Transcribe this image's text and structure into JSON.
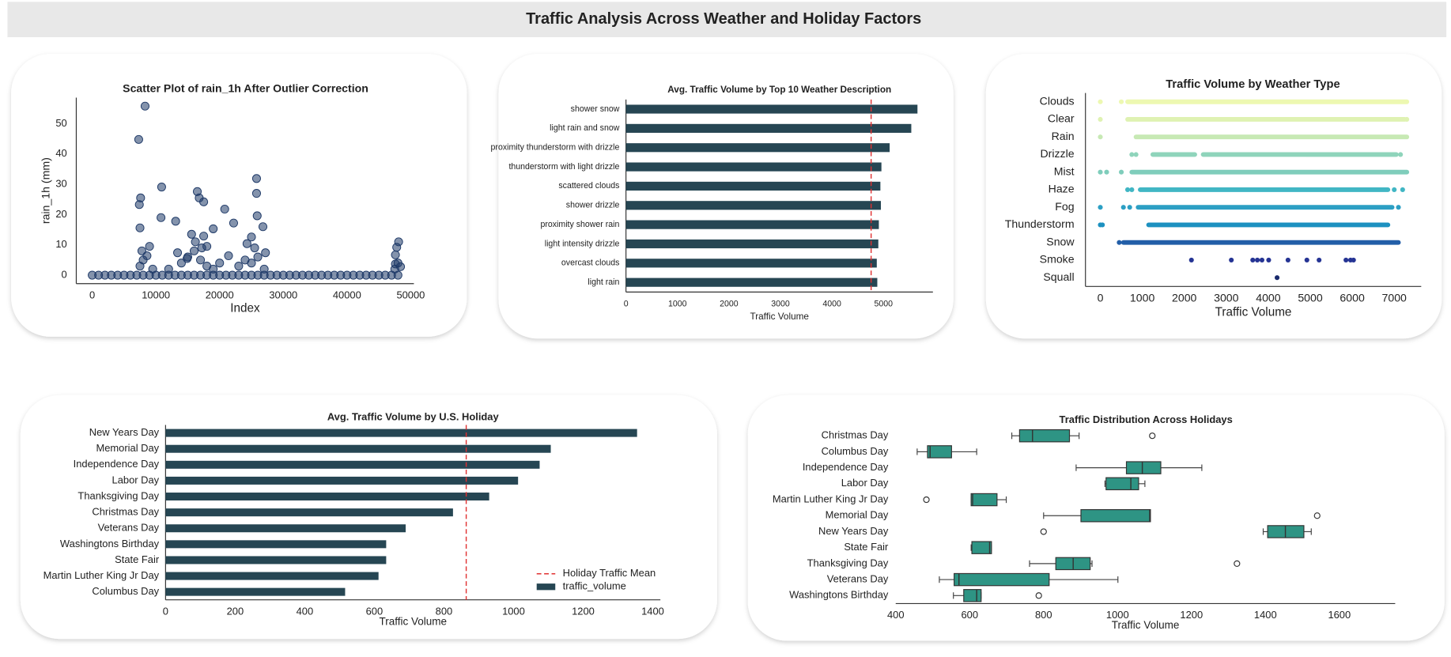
{
  "title": "Traffic Analysis Across Weather and Holiday Factors",
  "chart_data": [
    {
      "type": "scatter",
      "title": "Scatter Plot of rain_1h After Outlier Correction",
      "x_label": "Index",
      "y_label": "rain_1h (mm)",
      "color": "#1f3a68",
      "x": [
        0,
        1000,
        2000,
        3000,
        4000,
        5000,
        6000,
        7000,
        8000,
        9000,
        10000,
        11000,
        12000,
        13000,
        14000,
        15000,
        16000,
        17000,
        18000,
        19000,
        20000,
        21000,
        22000,
        23000,
        24000,
        25000,
        26000,
        27000,
        28000,
        29000,
        30000,
        31000,
        32000,
        33000,
        34000,
        35000,
        36000,
        37000,
        38000,
        39000,
        40000,
        41000,
        42000,
        43000,
        44000,
        45000,
        46000,
        47000,
        48000,
        8300,
        7300,
        7600,
        10900,
        16500,
        16800,
        17500,
        25800,
        25800,
        25900,
        7400,
        10800,
        20800,
        13100,
        7500,
        22200,
        26800,
        17500,
        15600,
        19000,
        48100,
        47800,
        9000,
        25000,
        24300,
        18000,
        13400,
        21400,
        8600,
        27200,
        14900,
        47600,
        47600,
        48400,
        7500,
        8000,
        12000,
        14000,
        15000,
        16000,
        17000,
        18000,
        19000,
        20000,
        23000,
        24000,
        25000,
        26000,
        27000,
        47500,
        48000,
        7800,
        9500,
        16200,
        17200,
        25500
      ],
      "values": [
        0,
        0,
        0,
        0,
        0,
        0,
        0,
        0,
        0,
        0,
        0,
        0,
        0,
        0,
        0,
        0,
        0,
        0,
        0,
        0,
        0,
        0,
        0,
        0,
        0,
        0,
        0,
        0,
        0,
        0,
        0,
        0,
        0,
        0,
        0,
        0,
        0,
        0,
        0,
        0,
        0,
        0,
        0,
        0,
        0,
        0,
        0,
        0,
        0,
        55.8,
        44.8,
        25.5,
        29.1,
        27.6,
        25.5,
        24.2,
        31.9,
        27,
        19.6,
        23.3,
        19,
        21.8,
        17.8,
        15.6,
        17.2,
        16,
        12.9,
        13.5,
        15.3,
        11,
        9.2,
        9.5,
        12.6,
        10.4,
        9.5,
        7.4,
        6.4,
        6.4,
        7.4,
        5.5,
        6.7,
        3.7,
        2.8,
        3,
        5,
        2,
        4,
        6,
        8,
        5,
        3,
        2,
        4,
        3,
        5,
        4,
        6,
        2,
        2,
        4,
        8,
        2,
        11,
        9,
        9
      ],
      "xlim": [
        -2500,
        50500
      ],
      "xticks": [
        0,
        10000,
        20000,
        30000,
        40000,
        50000
      ],
      "ylim": [
        -2.8,
        58.6
      ],
      "yticks": [
        0,
        10,
        20,
        30,
        40,
        50
      ]
    },
    {
      "type": "bar",
      "orientation": "horizontal",
      "title": "Avg. Traffic Volume by Top 10 Weather Description",
      "x_label": "Traffic Volume",
      "categories": [
        "shower snow",
        "light rain and snow",
        "proximity thunderstorm with drizzle",
        "thunderstorm with light drizzle",
        "scattered clouds",
        "shower drizzle",
        "proximity shower rain",
        "light intensity drizzle",
        "overcast clouds",
        "light rain"
      ],
      "series": [
        {
          "color": "#264653",
          "values": [
            5660,
            5540,
            5120,
            4960,
            4940,
            4950,
            4910,
            4900,
            4870,
            4880
          ]
        }
      ],
      "mean_line": {
        "value": 4760,
        "color": "#e03030"
      },
      "xlim": [
        0,
        5960
      ],
      "xticks": [
        0,
        1000,
        2000,
        3000,
        4000,
        5000
      ]
    },
    {
      "type": "strip",
      "title": "Traffic Volume by Weather Type",
      "x_label": "Traffic Volume",
      "series": [
        {
          "name": "Clouds",
          "color": "#edf8b1",
          "ranges": [
            [
              650,
              7300
            ]
          ],
          "values": [
            0,
            500
          ]
        },
        {
          "name": "Clear",
          "color": "#dff2b2",
          "ranges": [
            [
              650,
              7250
            ]
          ],
          "values": [
            0,
            7300
          ]
        },
        {
          "name": "Rain",
          "color": "#c7e9b4",
          "ranges": [
            [
              850,
              7300
            ]
          ],
          "values": [
            0
          ]
        },
        {
          "name": "Drizzle",
          "color": "#8fd4bb",
          "ranges": [
            [
              1250,
              2250
            ],
            [
              2450,
              7050
            ]
          ],
          "values": [
            750,
            850,
            7150
          ]
        },
        {
          "name": "Mist",
          "color": "#7fcdbb",
          "ranges": [
            [
              750,
              7300
            ]
          ],
          "values": [
            0,
            150,
            500
          ]
        },
        {
          "name": "Haze",
          "color": "#41b6c4",
          "ranges": [
            [
              950,
              6850
            ]
          ],
          "values": [
            650,
            750,
            7000,
            7200
          ]
        },
        {
          "name": "Fog",
          "color": "#2c9fc4",
          "ranges": [
            [
              900,
              6950
            ]
          ],
          "values": [
            0,
            550,
            700,
            7100
          ]
        },
        {
          "name": "Thunderstorm",
          "color": "#1d91c0",
          "ranges": [
            [
              1150,
              6850
            ]
          ],
          "values": [
            0,
            50
          ]
        },
        {
          "name": "Snow",
          "color": "#225ea8",
          "ranges": [
            [
              550,
              7100
            ]
          ],
          "values": [
            450
          ]
        },
        {
          "name": "Smoke",
          "color": "#253494",
          "values": [
            2170,
            3120,
            3630,
            3740,
            3850,
            4010,
            4470,
            4920,
            5210,
            5850,
            5960,
            6030
          ]
        },
        {
          "name": "Squall",
          "color": "#1a2a6c",
          "values": [
            4210
          ]
        }
      ],
      "xlim": [
        -354,
        7643
      ],
      "xticks": [
        0,
        1000,
        2000,
        3000,
        4000,
        5000,
        6000,
        7000
      ]
    },
    {
      "type": "bar",
      "orientation": "horizontal",
      "title": "Avg. Traffic Volume by U.S. Holiday",
      "x_label": "Traffic Volume",
      "categories": [
        "New Years Day",
        "Memorial Day",
        "Independence Day",
        "Labor Day",
        "Thanksgiving Day",
        "Christmas Day",
        "Veterans Day",
        "Washingtons Birthday",
        "State Fair",
        "Martin Luther King Jr Day",
        "Columbus Day"
      ],
      "series": [
        {
          "name": "traffic_volume",
          "color": "#264653",
          "values": [
            1355,
            1107,
            1075,
            1013,
            930,
            826,
            690,
            634,
            634,
            612,
            516
          ]
        }
      ],
      "mean_line": {
        "name": "Holiday Traffic Mean",
        "value": 864,
        "color": "#e03030"
      },
      "legend": "lower right",
      "xlim": [
        0,
        1422
      ],
      "xticks": [
        0,
        200,
        400,
        600,
        800,
        1000,
        1200,
        1400
      ]
    },
    {
      "type": "box",
      "title": "Traffic Distribution Across Holidays",
      "x_label": "Traffic Volume",
      "color": "#2e9484",
      "categories": [
        "Christmas Day",
        "Columbus Day",
        "Independence Day",
        "Labor Day",
        "Martin Luther King Jr Day",
        "Memorial Day",
        "New Years Day",
        "State Fair",
        "Thanksgiving Day",
        "Veterans Day",
        "Washingtons Birthday"
      ],
      "boxes": [
        {
          "low": 714,
          "q1": 735,
          "median": 770,
          "q3": 870,
          "high": 896,
          "outliers": [
            1094
          ]
        },
        {
          "low": 458,
          "q1": 486,
          "median": 493,
          "q3": 551,
          "high": 619
        },
        {
          "low": 888,
          "q1": 1024,
          "median": 1067,
          "q3": 1117,
          "high": 1228
        },
        {
          "low": 966,
          "q1": 969,
          "median": 1036,
          "q3": 1057,
          "high": 1074
        },
        {
          "low": 604,
          "q1": 604,
          "median": 608,
          "q3": 674,
          "high": 699,
          "outliers": [
            483
          ]
        },
        {
          "low": 800,
          "q1": 901,
          "median": 1087,
          "q3": 1089,
          "high": 1089,
          "outliers": [
            1540
          ]
        },
        {
          "low": 1394,
          "q1": 1406,
          "median": 1454,
          "q3": 1504,
          "high": 1524,
          "outliers": [
            800
          ]
        },
        {
          "low": 604,
          "q1": 606,
          "median": 654,
          "q3": 659,
          "high": 659
        },
        {
          "low": 762,
          "q1": 833,
          "median": 880,
          "q3": 926,
          "high": 931,
          "outliers": [
            1323
          ]
        },
        {
          "low": 518,
          "q1": 558,
          "median": 571,
          "q3": 815,
          "high": 1001
        },
        {
          "low": 556,
          "q1": 584,
          "median": 619,
          "q3": 631,
          "high": 631,
          "outliers": [
            787
          ]
        }
      ],
      "xlim": [
        400,
        1751
      ],
      "xticks": [
        400,
        600,
        800,
        1000,
        1200,
        1400,
        1600
      ]
    }
  ]
}
